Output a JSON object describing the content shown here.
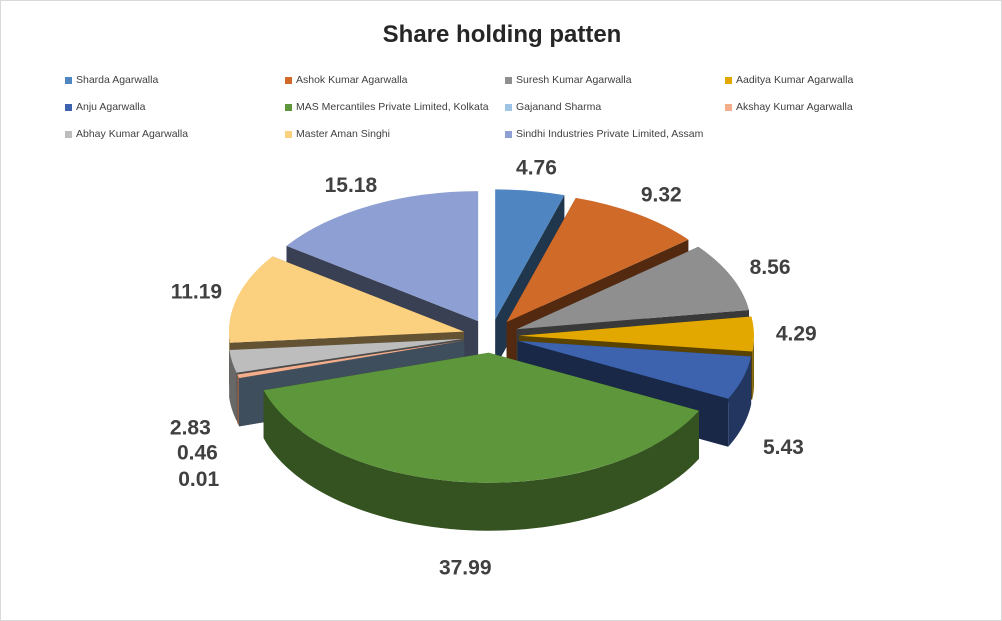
{
  "chart_data": {
    "type": "pie",
    "variant": "3d-exploded",
    "title": "Share holding patten",
    "legend_position": "top",
    "slices": [
      {
        "name": "Sharda Agarwalla",
        "value": 4.76,
        "color": "#4F86C1"
      },
      {
        "name": "Ashok Kumar Agarwalla",
        "value": 9.32,
        "color": "#D06A28"
      },
      {
        "name": "Suresh Kumar Agarwalla",
        "value": 8.56,
        "color": "#8F8F8F"
      },
      {
        "name": "Aaditya Kumar Agarwalla",
        "value": 4.29,
        "color": "#E2A800"
      },
      {
        "name": "Anju Agarwalla",
        "value": 5.43,
        "color": "#3D63AF"
      },
      {
        "name": "MAS Mercantiles Private Limited, Kolkata",
        "value": 37.99,
        "color": "#5E973B"
      },
      {
        "name": "Gajanand Sharma",
        "value": 0.01,
        "color": "#9DC3E6"
      },
      {
        "name": "Akshay Kumar Agarwalla",
        "value": 0.46,
        "color": "#F4AE8C"
      },
      {
        "name": "Abhay Kumar Agarwalla",
        "value": 2.83,
        "color": "#BDBDBD"
      },
      {
        "name": "Master Aman Singhi",
        "value": 11.19,
        "color": "#FBD07F"
      },
      {
        "name": "Sindhi Industries Private Limited, Assam",
        "value": 15.18,
        "color": "#8E9FD3"
      }
    ]
  }
}
